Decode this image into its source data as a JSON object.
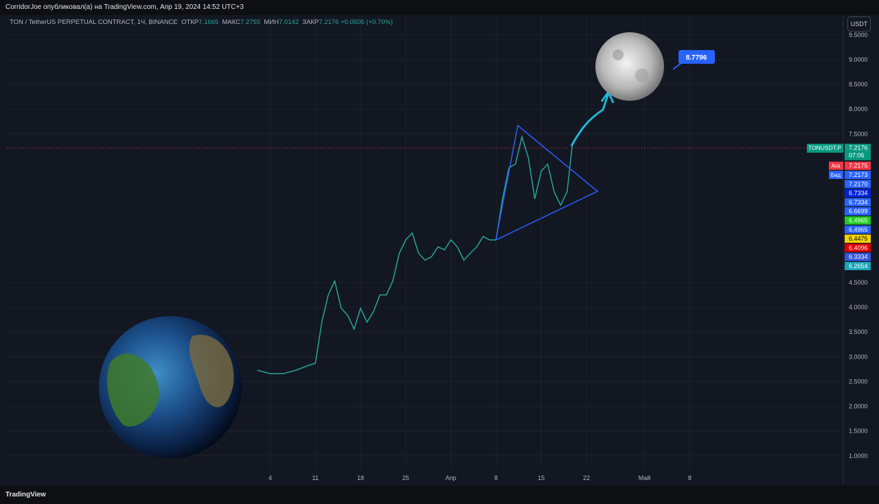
{
  "header": {
    "publisher": "CorridorJoe опубликовал(а) на TradingView.com, Апр 19, 2024 14:52 UTC+3"
  },
  "symbol": {
    "name": "TON / TetherUS PERPETUAL CONTRACT, 1Ч, BINANCE",
    "open_label": "ОТКР",
    "open": "7.1665",
    "high_label": "МАКС",
    "high": "7.2755",
    "low_label": "МИН",
    "low": "7.0142",
    "close_label": "ЗАКР",
    "close": "7.2176",
    "change": "+0.0505 (+0.70%)"
  },
  "currency": "USDT",
  "footer": "TradingView",
  "chart_data": {
    "type": "line",
    "color": "#26a69a",
    "x": [
      1,
      3,
      5,
      7,
      9,
      10,
      11,
      12,
      13,
      14,
      15,
      16,
      17,
      18,
      19,
      20,
      21,
      22,
      23,
      24,
      25,
      26,
      27,
      28,
      29,
      30,
      31,
      32,
      33,
      34,
      35,
      36,
      37,
      38,
      39,
      40,
      41,
      42,
      43,
      44,
      45,
      46,
      47,
      48,
      49,
      49.8
    ],
    "values": [
      2.73,
      2.66,
      2.66,
      2.73,
      2.83,
      2.87,
      3.7,
      4.25,
      4.53,
      3.98,
      3.84,
      3.56,
      3.98,
      3.7,
      3.91,
      4.25,
      4.25,
      4.53,
      5.09,
      5.36,
      5.5,
      5.09,
      4.95,
      5.02,
      5.22,
      5.16,
      5.36,
      5.22,
      4.95,
      5.09,
      5.22,
      5.43,
      5.36,
      5.36,
      6.19,
      6.82,
      6.89,
      7.44,
      7.02,
      6.19,
      6.75,
      6.89,
      6.33,
      6.06,
      6.33,
      7.26
    ],
    "xlim": [
      -37.8,
      91.8
    ],
    "ylim": [
      0.43,
      9.65
    ],
    "xticks": [
      {
        "value": 3,
        "label": "4"
      },
      {
        "value": 10,
        "label": "11"
      },
      {
        "value": 17,
        "label": "18"
      },
      {
        "value": 24,
        "label": "25"
      },
      {
        "value": 31,
        "label": "Апр"
      },
      {
        "value": 38,
        "label": "8"
      },
      {
        "value": 45,
        "label": "15"
      },
      {
        "value": 52,
        "label": "22"
      },
      {
        "value": 61,
        "label": "Май"
      },
      {
        "value": 68,
        "label": "8"
      }
    ],
    "yticks": [
      {
        "value": 9.5,
        "label": "9.5000"
      },
      {
        "value": 9,
        "label": "9.0000"
      },
      {
        "value": 8.5,
        "label": "8.5000"
      },
      {
        "value": 8,
        "label": "8.0000"
      },
      {
        "value": 7.5,
        "label": "7.5000"
      },
      {
        "value": 4.5,
        "label": "4.5000"
      },
      {
        "value": 4,
        "label": "4.0000"
      },
      {
        "value": 3.5,
        "label": "3.5000"
      },
      {
        "value": 3,
        "label": "3.0000"
      },
      {
        "value": 2.5,
        "label": "2.5000"
      },
      {
        "value": 2,
        "label": "2.0000"
      },
      {
        "value": 1.5,
        "label": "1.5000"
      },
      {
        "value": 1,
        "label": "1.0000"
      }
    ],
    "grid": true,
    "last_price": 7.2176,
    "symbol_tag": "TONUSDT.P",
    "countdown": "07:06",
    "price_labels": [
      {
        "name": "Аск",
        "value": "7.2175",
        "color": "#f23645"
      },
      {
        "name": "Бид",
        "value": "7.2173",
        "color": "#2962ff"
      },
      {
        "value": "7.2170",
        "color": "#2962ff"
      },
      {
        "value": "6.7334",
        "color": "#0022dd"
      },
      {
        "value": "6.7334",
        "color": "#2962ff"
      },
      {
        "value": "6.6699",
        "color": "#2962ff"
      },
      {
        "value": "6.4965",
        "color": "#22cc22"
      },
      {
        "value": "6.4965",
        "color": "#2962ff"
      },
      {
        "value": "6.4475",
        "color": "#f5d400"
      },
      {
        "value": "6.4096",
        "color": "#e00000"
      },
      {
        "value": "6.3334",
        "color": "#3355dd"
      },
      {
        "value": "6.2654",
        "color": "#1aa6b7"
      }
    ],
    "target_label": "8.7796"
  }
}
